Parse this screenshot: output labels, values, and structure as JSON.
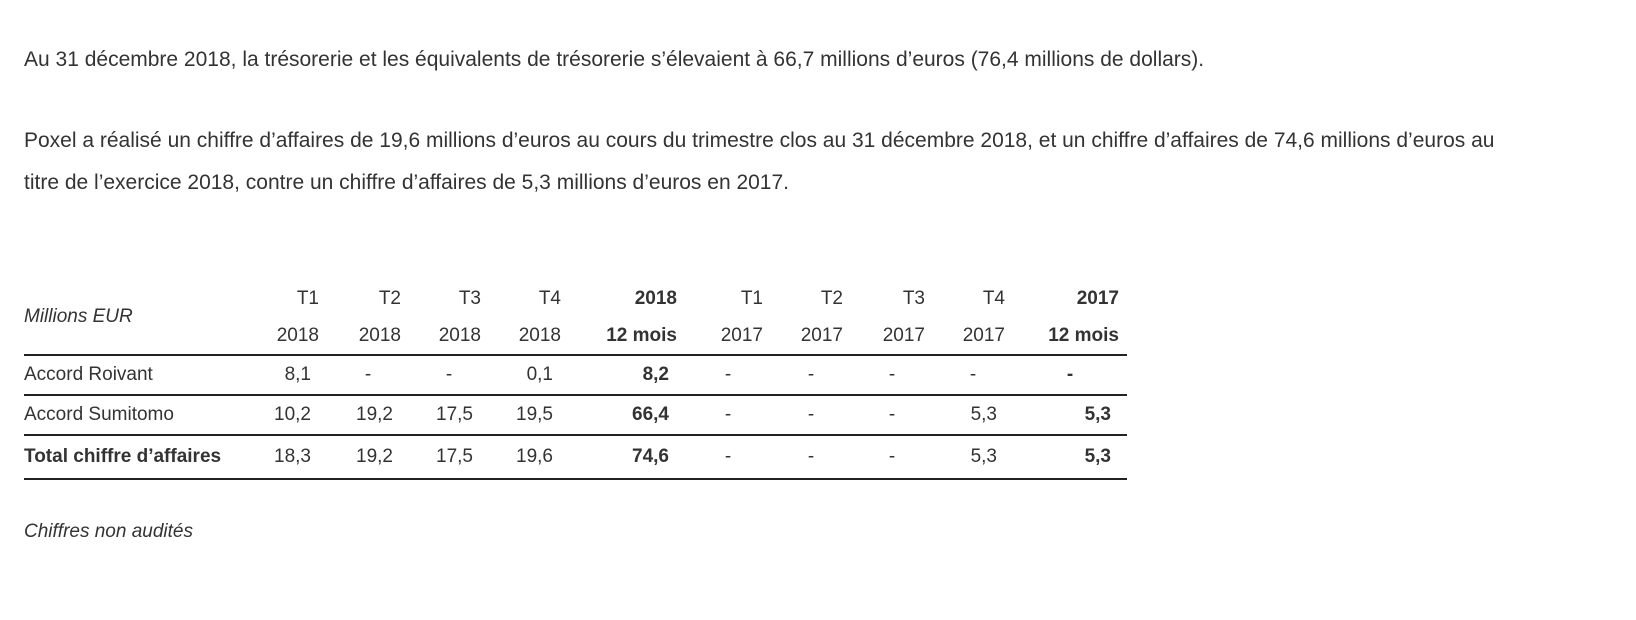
{
  "paragraphs": {
    "p1": "Au 31 décembre 2018, la trésorerie et les équivalents de trésorerie s’élevaient à 66,7 millions d’euros (76,4 millions de dollars).",
    "p2": "Poxel a réalisé un chiffre d’affaires de 19,6 millions d’euros au cours du trimestre clos au 31 décembre 2018, et un chiffre d’affaires de 74,6 millions d’euros au titre de l’exercice 2018, contre un chiffre d’affaires de 5,3 millions d’euros en 2017."
  },
  "table": {
    "unit_label": "Millions EUR",
    "header_top": [
      "T1",
      "T2",
      "T3",
      "T4",
      "2018",
      "T1",
      "T2",
      "T3",
      "T4",
      "2017"
    ],
    "header_bottom": [
      "2018",
      "2018",
      "2018",
      "2018",
      "12 mois",
      "2017",
      "2017",
      "2017",
      "2017",
      "12 mois"
    ],
    "rows": [
      {
        "label": "Accord Roivant",
        "values": [
          "8,1",
          "-",
          "-",
          "0,1",
          "8,2",
          "-",
          "-",
          "-",
          "-",
          "-"
        ]
      },
      {
        "label": "Accord Sumitomo",
        "values": [
          "10,2",
          "19,2",
          "17,5",
          "19,5",
          "66,4",
          "-",
          "-",
          "-",
          "5,3",
          "5,3"
        ]
      },
      {
        "label": "Total chiffre d’affaires",
        "values": [
          "18,3",
          "19,2",
          "17,5",
          "19,6",
          "74,6",
          "-",
          "-",
          "-",
          "5,3",
          "5,3"
        ]
      }
    ],
    "footnote": "Chiffres non audités"
  }
}
